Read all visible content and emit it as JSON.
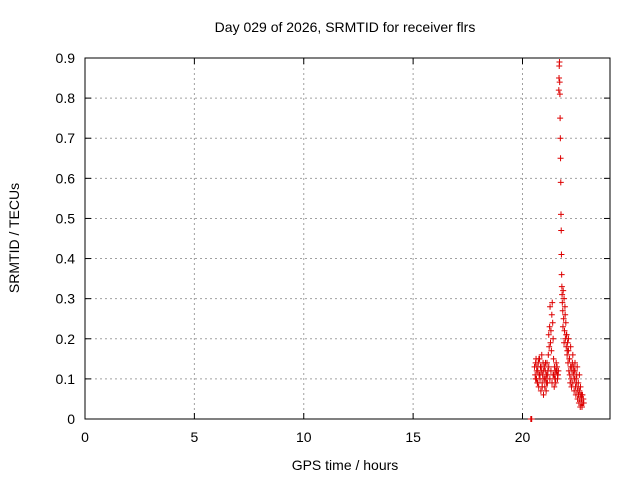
{
  "chart_data": {
    "type": "scatter",
    "title": "Day 029 of 2026, SRMTID for receiver flrs",
    "xlabel": "GPS time / hours",
    "ylabel": "SRMTID / TECUs",
    "xlim": [
      0,
      24
    ],
    "ylim": [
      0,
      0.9
    ],
    "xticks": [
      0,
      5,
      10,
      15,
      20
    ],
    "xtick_labels": [
      "0",
      "5",
      "10",
      "15",
      "20"
    ],
    "yticks": [
      0,
      0.1,
      0.2,
      0.3,
      0.4,
      0.5,
      0.6,
      0.7,
      0.8,
      0.9
    ],
    "ytick_labels": [
      "0",
      "0.1",
      "0.2",
      "0.3",
      "0.4",
      "0.5",
      "0.6",
      "0.7",
      "0.8",
      "0.9"
    ],
    "grid": true,
    "marker": "+",
    "marker_color": "#dd0000",
    "series": [
      {
        "name": "SRMTID",
        "x": [
          20.38,
          20.4,
          20.42,
          20.55,
          20.58,
          20.6,
          20.62,
          20.64,
          20.66,
          20.68,
          20.7,
          20.72,
          20.74,
          20.76,
          20.78,
          20.8,
          20.82,
          20.84,
          20.86,
          20.88,
          20.9,
          20.92,
          20.94,
          20.96,
          20.98,
          21.0,
          21.02,
          21.04,
          21.06,
          21.08,
          21.1,
          21.12,
          21.14,
          21.16,
          21.18,
          21.2,
          21.22,
          21.24,
          21.26,
          21.28,
          21.3,
          21.32,
          21.34,
          21.36,
          21.38,
          21.4,
          21.42,
          21.44,
          21.46,
          21.48,
          21.5,
          21.52,
          21.54,
          21.56,
          21.58,
          21.6,
          21.62,
          21.64,
          21.66,
          21.67,
          21.68,
          21.69,
          21.7,
          21.71,
          21.72,
          21.73,
          21.74,
          21.75,
          21.76,
          21.77,
          21.78,
          21.79,
          21.8,
          21.81,
          21.82,
          21.84,
          21.86,
          21.88,
          21.9,
          21.92,
          21.94,
          21.96,
          21.98,
          22.0,
          22.02,
          22.04,
          22.06,
          22.08,
          22.1,
          22.12,
          22.14,
          22.16,
          22.18,
          22.2,
          22.22,
          22.24,
          22.26,
          22.28,
          22.3,
          22.32,
          22.34,
          22.36,
          22.38,
          22.4,
          22.42,
          22.44,
          22.46,
          22.48,
          22.5,
          22.52,
          22.54,
          22.56,
          22.58,
          22.6,
          22.62,
          22.64,
          22.66,
          22.68,
          22.7,
          22.72,
          22.74,
          22.76,
          22.78,
          22.8,
          20.6,
          20.65,
          20.7,
          20.75,
          20.8,
          20.85,
          20.9,
          20.95,
          21.0,
          21.05,
          21.1,
          21.15,
          21.2,
          21.25,
          21.3,
          21.35,
          21.4,
          21.45,
          21.5,
          21.55,
          21.6,
          21.85,
          21.9,
          21.95,
          22.0,
          22.05,
          22.1,
          22.15,
          22.2,
          22.25,
          22.3,
          22.35,
          22.4,
          22.45,
          22.5,
          22.55,
          22.6,
          22.65,
          22.7
        ],
        "y": [
          0.0,
          0.0,
          0.0,
          0.13,
          0.11,
          0.14,
          0.15,
          0.1,
          0.13,
          0.09,
          0.12,
          0.14,
          0.08,
          0.11,
          0.15,
          0.1,
          0.13,
          0.07,
          0.12,
          0.16,
          0.09,
          0.11,
          0.14,
          0.06,
          0.1,
          0.13,
          0.08,
          0.12,
          0.1,
          0.07,
          0.11,
          0.14,
          0.09,
          0.12,
          0.16,
          0.21,
          0.18,
          0.23,
          0.28,
          0.19,
          0.22,
          0.17,
          0.26,
          0.29,
          0.24,
          0.2,
          0.15,
          0.11,
          0.13,
          0.1,
          0.12,
          0.09,
          0.14,
          0.12,
          0.13,
          0.1,
          0.11,
          0.12,
          0.82,
          0.85,
          0.88,
          0.89,
          0.84,
          0.81,
          0.75,
          0.7,
          0.65,
          0.59,
          0.51,
          0.47,
          0.41,
          0.36,
          0.33,
          0.31,
          0.29,
          0.27,
          0.32,
          0.25,
          0.3,
          0.22,
          0.28,
          0.2,
          0.24,
          0.18,
          0.21,
          0.16,
          0.19,
          0.14,
          0.17,
          0.12,
          0.15,
          0.11,
          0.09,
          0.13,
          0.1,
          0.08,
          0.12,
          0.14,
          0.09,
          0.11,
          0.13,
          0.07,
          0.1,
          0.12,
          0.08,
          0.06,
          0.09,
          0.11,
          0.07,
          0.05,
          0.08,
          0.06,
          0.04,
          0.07,
          0.05,
          0.03,
          0.06,
          0.04,
          0.05,
          0.03,
          0.06,
          0.04,
          0.05,
          0.04,
          0.1,
          0.12,
          0.09,
          0.15,
          0.11,
          0.13,
          0.08,
          0.12,
          0.1,
          0.14,
          0.09,
          0.11,
          0.13,
          0.1,
          0.12,
          0.09,
          0.11,
          0.08,
          0.1,
          0.12,
          0.11,
          0.23,
          0.19,
          0.26,
          0.21,
          0.17,
          0.2,
          0.15,
          0.18,
          0.13,
          0.16,
          0.12,
          0.14,
          0.1,
          0.13,
          0.09,
          0.11,
          0.08,
          0.06
        ]
      }
    ]
  }
}
